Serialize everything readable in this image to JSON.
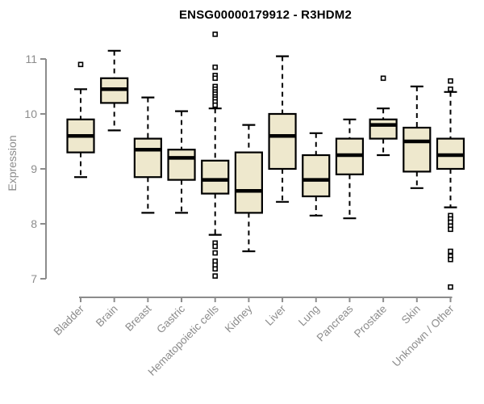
{
  "colors": {
    "box_fill": "#EEE8CD",
    "box_stroke": "#000000",
    "median": "#000000",
    "whisker": "#000000",
    "outlier_stroke": "#000000",
    "outlier_fill": "#FFFFFF",
    "axis": "#8C8C8C",
    "tick_label": "#8C8C8C",
    "title": "#000000"
  },
  "chart_data": {
    "type": "boxplot",
    "title": "ENSG00000179912 - R3HDM2",
    "ylabel": "Expression",
    "xlabel": "",
    "ylim": [
      6.8,
      11.5
    ],
    "yticks": [
      7,
      8,
      9,
      10,
      11
    ],
    "grid": false,
    "legend": "none",
    "categories": [
      "Bladder",
      "Brain",
      "Breast",
      "Gastric",
      "Hematopoietic cells",
      "Kidney",
      "Liver",
      "Lung",
      "Pancreas",
      "Prostate",
      "Skin",
      "Unknown / Other"
    ],
    "series": [
      {
        "category": "Bladder",
        "low": 8.85,
        "q1": 9.3,
        "median": 9.6,
        "q3": 9.9,
        "high": 10.45,
        "outliers": [
          10.9
        ]
      },
      {
        "category": "Brain",
        "low": 9.7,
        "q1": 10.2,
        "median": 10.45,
        "q3": 10.65,
        "high": 11.15,
        "outliers": []
      },
      {
        "category": "Breast",
        "low": 8.2,
        "q1": 8.85,
        "median": 9.35,
        "q3": 9.55,
        "high": 10.3,
        "outliers": []
      },
      {
        "category": "Gastric",
        "low": 8.2,
        "q1": 8.8,
        "median": 9.2,
        "q3": 9.35,
        "high": 10.05,
        "outliers": []
      },
      {
        "category": "Hematopoietic cells",
        "low": 7.8,
        "q1": 8.55,
        "median": 8.8,
        "q3": 9.15,
        "high": 10.1,
        "outliers": [
          11.45,
          10.85,
          10.7,
          10.65,
          10.5,
          10.45,
          10.4,
          10.36,
          10.31,
          10.27,
          10.22,
          10.16,
          7.65,
          7.59,
          7.47,
          7.32,
          7.25,
          7.18,
          7.05
        ]
      },
      {
        "category": "Kidney",
        "low": 7.5,
        "q1": 8.2,
        "median": 8.6,
        "q3": 9.3,
        "high": 9.8,
        "outliers": []
      },
      {
        "category": "Liver",
        "low": 8.4,
        "q1": 9.0,
        "median": 9.6,
        "q3": 10.0,
        "high": 11.05,
        "outliers": []
      },
      {
        "category": "Lung",
        "low": 8.15,
        "q1": 8.5,
        "median": 8.8,
        "q3": 9.25,
        "high": 9.65,
        "outliers": []
      },
      {
        "category": "Pancreas",
        "low": 8.1,
        "q1": 8.9,
        "median": 9.25,
        "q3": 9.55,
        "high": 9.9,
        "outliers": []
      },
      {
        "category": "Prostate",
        "low": 9.25,
        "q1": 9.55,
        "median": 9.8,
        "q3": 9.9,
        "high": 10.1,
        "outliers": [
          10.65
        ]
      },
      {
        "category": "Skin",
        "low": 8.65,
        "q1": 8.95,
        "median": 9.5,
        "q3": 9.75,
        "high": 10.5,
        "outliers": []
      },
      {
        "category": "Unknown / Other",
        "low": 8.3,
        "q1": 9.0,
        "median": 9.25,
        "q3": 9.55,
        "high": 10.4,
        "outliers": [
          10.6,
          10.45,
          8.15,
          8.09,
          8.03,
          7.96,
          7.9,
          7.5,
          7.41,
          7.35,
          6.85
        ]
      }
    ]
  }
}
